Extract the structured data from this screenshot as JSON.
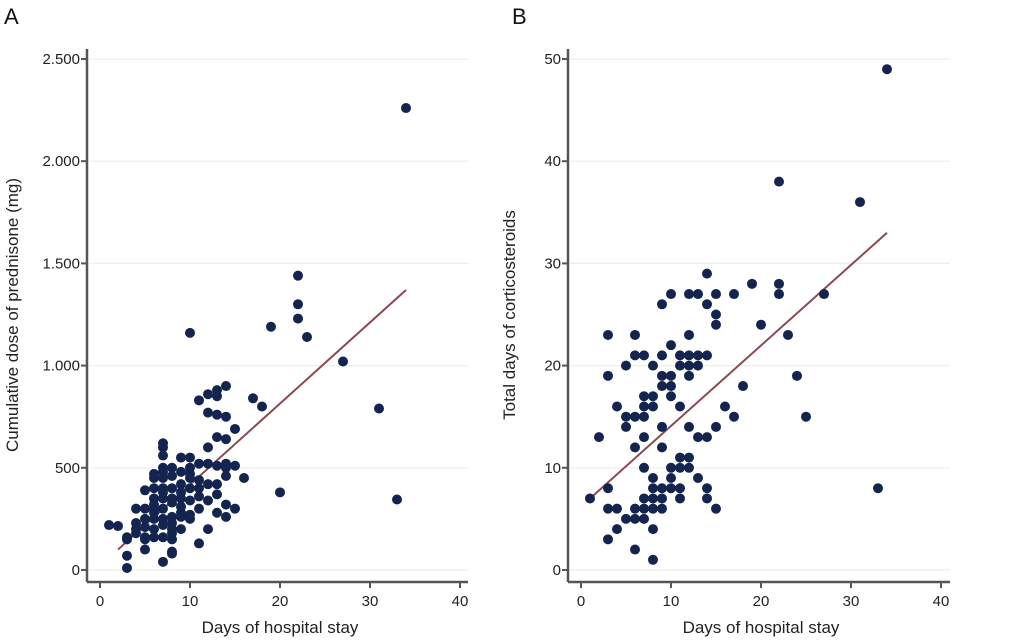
{
  "chart_data": [
    {
      "panel": "A",
      "type": "scatter",
      "title": "",
      "xlabel": "Days of hospital stay",
      "ylabel": "Cumulative dose of prednisone (mg)",
      "xlim": [
        0,
        40
      ],
      "ylim": [
        0,
        2500
      ],
      "xticks": [
        0,
        10,
        20,
        30,
        40
      ],
      "xtick_labels": [
        "0",
        "10",
        "20",
        "30",
        "40"
      ],
      "yticks": [
        0,
        500,
        1000,
        1500,
        2000,
        2500
      ],
      "ytick_labels": [
        "0",
        "500",
        "1.000",
        "1.500",
        "2.000",
        "2.500"
      ],
      "grid": "horizontal",
      "colors": {
        "points": "#13244f",
        "fit_line": "#8a4a50"
      },
      "fit_line": {
        "x": [
          2,
          34
        ],
        "y": [
          100,
          1370
        ]
      },
      "points": [
        [
          1,
          220
        ],
        [
          2,
          215
        ],
        [
          3,
          150
        ],
        [
          3,
          70
        ],
        [
          3,
          10
        ],
        [
          3,
          160
        ],
        [
          4,
          200
        ],
        [
          4,
          300
        ],
        [
          4,
          180
        ],
        [
          4,
          230
        ],
        [
          5,
          100
        ],
        [
          5,
          150
        ],
        [
          5,
          250
        ],
        [
          5,
          300
        ],
        [
          5,
          210
        ],
        [
          5,
          390
        ],
        [
          5,
          160
        ],
        [
          6,
          160
        ],
        [
          6,
          200
        ],
        [
          6,
          250
        ],
        [
          6,
          300
        ],
        [
          6,
          350
        ],
        [
          6,
          400
        ],
        [
          6,
          450
        ],
        [
          6,
          470
        ],
        [
          6,
          320
        ],
        [
          6,
          280
        ],
        [
          7,
          620
        ],
        [
          7,
          600
        ],
        [
          7,
          560
        ],
        [
          7,
          500
        ],
        [
          7,
          450
        ],
        [
          7,
          400
        ],
        [
          7,
          350
        ],
        [
          7,
          300
        ],
        [
          7,
          250
        ],
        [
          7,
          220
        ],
        [
          7,
          160
        ],
        [
          7,
          40
        ],
        [
          7,
          480
        ],
        [
          7,
          380
        ],
        [
          8,
          90
        ],
        [
          8,
          80
        ],
        [
          8,
          150
        ],
        [
          8,
          200
        ],
        [
          8,
          260
        ],
        [
          8,
          330
        ],
        [
          8,
          400
        ],
        [
          8,
          460
        ],
        [
          8,
          500
        ],
        [
          8,
          350
        ],
        [
          8,
          230
        ],
        [
          8,
          180
        ],
        [
          9,
          200
        ],
        [
          9,
          260
        ],
        [
          9,
          310
        ],
        [
          9,
          350
        ],
        [
          9,
          420
        ],
        [
          9,
          480
        ],
        [
          9,
          550
        ],
        [
          9,
          280
        ],
        [
          9,
          380
        ],
        [
          10,
          1160
        ],
        [
          10,
          550
        ],
        [
          10,
          500
        ],
        [
          10,
          470
        ],
        [
          10,
          400
        ],
        [
          10,
          340
        ],
        [
          10,
          270
        ],
        [
          10,
          250
        ],
        [
          10,
          450
        ],
        [
          11,
          130
        ],
        [
          11,
          360
        ],
        [
          11,
          830
        ],
        [
          11,
          520
        ],
        [
          11,
          440
        ],
        [
          11,
          300
        ],
        [
          11,
          400
        ],
        [
          12,
          420
        ],
        [
          12,
          520
        ],
        [
          12,
          600
        ],
        [
          12,
          860
        ],
        [
          12,
          770
        ],
        [
          12,
          200
        ],
        [
          12,
          340
        ],
        [
          13,
          880
        ],
        [
          13,
          760
        ],
        [
          13,
          650
        ],
        [
          13,
          510
        ],
        [
          13,
          370
        ],
        [
          13,
          280
        ],
        [
          13,
          420
        ],
        [
          13,
          850
        ],
        [
          14,
          900
        ],
        [
          14,
          750
        ],
        [
          14,
          640
        ],
        [
          14,
          500
        ],
        [
          14,
          320
        ],
        [
          14,
          260
        ],
        [
          14,
          520
        ],
        [
          14,
          460
        ],
        [
          15,
          690
        ],
        [
          15,
          510
        ],
        [
          15,
          300
        ],
        [
          16,
          450
        ],
        [
          17,
          840
        ],
        [
          18,
          800
        ],
        [
          19,
          1190
        ],
        [
          20,
          380
        ],
        [
          22,
          1440
        ],
        [
          22,
          1300
        ],
        [
          22,
          1230
        ],
        [
          23,
          1140
        ],
        [
          27,
          1020
        ],
        [
          31,
          790
        ],
        [
          33,
          345
        ],
        [
          34,
          2260
        ]
      ]
    },
    {
      "panel": "B",
      "type": "scatter",
      "title": "",
      "xlabel": "Days of hospital stay",
      "ylabel": "Total days of corticosteroids",
      "xlim": [
        0,
        40
      ],
      "ylim": [
        0,
        50
      ],
      "xticks": [
        0,
        10,
        20,
        30,
        40
      ],
      "xtick_labels": [
        "0",
        "10",
        "20",
        "30",
        "40"
      ],
      "yticks": [
        0,
        10,
        20,
        30,
        40,
        50
      ],
      "ytick_labels": [
        "0",
        "10",
        "20",
        "30",
        "40",
        "50"
      ],
      "grid": "horizontal",
      "colors": {
        "points": "#13244f",
        "fit_line": "#8a4a50"
      },
      "fit_line": {
        "x": [
          1,
          34
        ],
        "y": [
          7,
          33
        ]
      },
      "points": [
        [
          1,
          7
        ],
        [
          2,
          13
        ],
        [
          3,
          23
        ],
        [
          3,
          19
        ],
        [
          3,
          8
        ],
        [
          3,
          6
        ],
        [
          3,
          3
        ],
        [
          4,
          16
        ],
        [
          4,
          6
        ],
        [
          4,
          4
        ],
        [
          5,
          15
        ],
        [
          5,
          5
        ],
        [
          5,
          14
        ],
        [
          5,
          20
        ],
        [
          6,
          23
        ],
        [
          6,
          21
        ],
        [
          6,
          15
        ],
        [
          6,
          12
        ],
        [
          6,
          6
        ],
        [
          6,
          5
        ],
        [
          6,
          2
        ],
        [
          7,
          21
        ],
        [
          7,
          17
        ],
        [
          7,
          16
        ],
        [
          7,
          15
        ],
        [
          7,
          13
        ],
        [
          7,
          7
        ],
        [
          7,
          6
        ],
        [
          7,
          5
        ],
        [
          7,
          10
        ],
        [
          8,
          20
        ],
        [
          8,
          17
        ],
        [
          8,
          16
        ],
        [
          8,
          8
        ],
        [
          8,
          7
        ],
        [
          8,
          6
        ],
        [
          8,
          4
        ],
        [
          8,
          1
        ],
        [
          8,
          9
        ],
        [
          9,
          26
        ],
        [
          9,
          21
        ],
        [
          9,
          19
        ],
        [
          9,
          18
        ],
        [
          9,
          14
        ],
        [
          9,
          12
        ],
        [
          9,
          8
        ],
        [
          9,
          7
        ],
        [
          9,
          6
        ],
        [
          10,
          27
        ],
        [
          10,
          22
        ],
        [
          10,
          19
        ],
        [
          10,
          18
        ],
        [
          10,
          17
        ],
        [
          10,
          9
        ],
        [
          10,
          8
        ],
        [
          10,
          10
        ],
        [
          11,
          21
        ],
        [
          11,
          20
        ],
        [
          11,
          11
        ],
        [
          11,
          10
        ],
        [
          11,
          8
        ],
        [
          11,
          7
        ],
        [
          11,
          16
        ],
        [
          12,
          27
        ],
        [
          12,
          23
        ],
        [
          12,
          21
        ],
        [
          12,
          20
        ],
        [
          12,
          19
        ],
        [
          12,
          11
        ],
        [
          12,
          10
        ],
        [
          12,
          14
        ],
        [
          13,
          21
        ],
        [
          13,
          20
        ],
        [
          13,
          13
        ],
        [
          13,
          9
        ],
        [
          13,
          27
        ],
        [
          14,
          29
        ],
        [
          14,
          26
        ],
        [
          14,
          21
        ],
        [
          14,
          13
        ],
        [
          14,
          8
        ],
        [
          14,
          7
        ],
        [
          15,
          27
        ],
        [
          15,
          25
        ],
        [
          15,
          24
        ],
        [
          15,
          14
        ],
        [
          15,
          6
        ],
        [
          16,
          16
        ],
        [
          17,
          27
        ],
        [
          17,
          15
        ],
        [
          18,
          18
        ],
        [
          19,
          28
        ],
        [
          20,
          24
        ],
        [
          22,
          38
        ],
        [
          22,
          28
        ],
        [
          22,
          27
        ],
        [
          23,
          23
        ],
        [
          24,
          19
        ],
        [
          25,
          15
        ],
        [
          27,
          27
        ],
        [
          31,
          36
        ],
        [
          33,
          8
        ],
        [
          34,
          49
        ]
      ]
    }
  ]
}
